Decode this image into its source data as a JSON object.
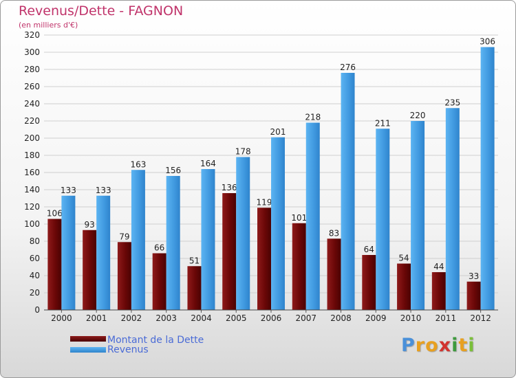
{
  "title": "Revenus/Dette - FAGNON",
  "subtitle": "(en milliers d'€)",
  "legend": {
    "debt_label": "Montant de la Dette",
    "revenue_label": "Revenus"
  },
  "logo": {
    "letters": [
      "P",
      "r",
      "o",
      "x",
      "i",
      "t",
      "i"
    ]
  },
  "colors": {
    "debt": "#7a0a0a",
    "revenue": "#4aa3e8",
    "title": "#c0336a"
  },
  "chart_data": {
    "type": "bar",
    "title": "Revenus/Dette - FAGNON",
    "ylabel": "(en milliers d'€)",
    "xlabel": "",
    "ylim": [
      0,
      320
    ],
    "ytick_step": 20,
    "categories": [
      "2000",
      "2001",
      "2002",
      "2003",
      "2004",
      "2005",
      "2006",
      "2007",
      "2008",
      "2009",
      "2010",
      "2011",
      "2012"
    ],
    "series": [
      {
        "name": "Montant de la Dette",
        "values": [
          106,
          93,
          79,
          66,
          51,
          136,
          119,
          101,
          83,
          64,
          54,
          44,
          33
        ]
      },
      {
        "name": "Revenus",
        "values": [
          133,
          133,
          163,
          156,
          164,
          178,
          201,
          218,
          276,
          211,
          220,
          235,
          306
        ]
      }
    ],
    "legend_position": "bottom-left"
  }
}
